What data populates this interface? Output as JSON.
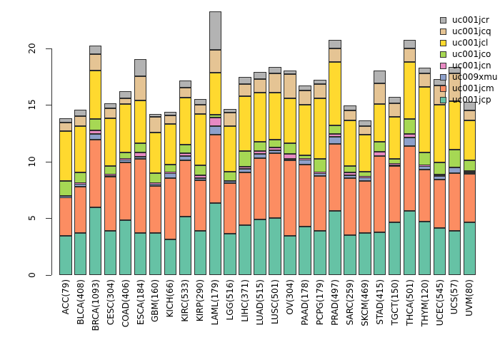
{
  "chart_data": {
    "type": "bar",
    "subtype": "stacked",
    "title": "",
    "xlabel": "",
    "ylabel": "",
    "ylim": [
      0,
      23.5
    ],
    "yticks": [
      "0",
      "5",
      "10",
      "15",
      "20"
    ],
    "ytick_values": [
      0,
      5,
      10,
      15,
      20
    ],
    "grid": false,
    "legend_position": "top-right",
    "bar_border_color": "#2f2f2f",
    "axis_color": "#333333",
    "categories": [
      "ACC(79)",
      "BLCA(408)",
      "BRCA(1093)",
      "CESC(304)",
      "COAD(406)",
      "ESCA(184)",
      "GBM(160)",
      "KICH(66)",
      "KIRC(533)",
      "KIRP(290)",
      "LAML(179)",
      "LGG(516)",
      "LIHC(371)",
      "LUAD(515)",
      "LUSC(501)",
      "OV(304)",
      "PAAD(178)",
      "PCPG(179)",
      "PRAD(497)",
      "SARC(259)",
      "SKCM(469)",
      "STAD(415)",
      "TGCT(150)",
      "THCA(501)",
      "THYM(120)",
      "UCEC(545)",
      "UCS(57)",
      "UVM(80)"
    ],
    "stack_order_note": "series listed bottom-to-top of stack",
    "series": [
      {
        "name": "uc001jcp",
        "color": "#66C2A5",
        "values": [
          3.4,
          3.65,
          5.95,
          3.85,
          4.8,
          3.65,
          3.65,
          3.1,
          5.1,
          3.85,
          6.35,
          3.6,
          4.35,
          4.9,
          5.0,
          3.4,
          4.25,
          3.9,
          5.65,
          3.5,
          3.65,
          3.75,
          4.65,
          5.6,
          4.7,
          4.1,
          3.9,
          4.6
        ]
      },
      {
        "name": "uc001jcm",
        "color": "#FC8D62",
        "values": [
          3.4,
          4.1,
          6.0,
          4.8,
          5.1,
          6.55,
          4.2,
          5.45,
          5.0,
          4.5,
          6.0,
          4.5,
          4.7,
          5.4,
          5.75,
          6.7,
          5.5,
          4.8,
          5.9,
          5.05,
          4.6,
          6.7,
          4.95,
          5.75,
          4.55,
          4.3,
          5.05,
          4.3
        ]
      },
      {
        "name": "uc009xmu",
        "color": "#8DA0CB",
        "values": [
          0.1,
          0.3,
          0.5,
          0.15,
          0.25,
          0.2,
          0.2,
          0.4,
          0.4,
          0.2,
          0.75,
          0.15,
          0.3,
          0.35,
          0.25,
          0.15,
          0.4,
          0.25,
          0.6,
          0.2,
          0.35,
          0.05,
          0.15,
          0.75,
          0.35,
          0.3,
          0.5,
          0.1
        ]
      },
      {
        "name": "uc001jcn",
        "color": "#E78AC3",
        "values": [
          0.05,
          0.05,
          0.3,
          0.05,
          0.05,
          0.4,
          0.05,
          0.05,
          0.25,
          0.2,
          0.8,
          0.05,
          0.2,
          0.25,
          0.2,
          0.4,
          0.05,
          0.05,
          0.3,
          0.28,
          0.05,
          0.35,
          0.05,
          0.3,
          0.05,
          0.15,
          0.05,
          0.15
        ]
      },
      {
        "name": "uc001jco",
        "color": "#A6D854",
        "values": [
          1.3,
          0.9,
          1.0,
          0.75,
          0.6,
          0.8,
          0.85,
          0.7,
          0.75,
          0.9,
          0.25,
          0.8,
          1.35,
          0.85,
          0.7,
          0.95,
          0.35,
          1.25,
          0.7,
          0.55,
          0.45,
          0.9,
          0.4,
          1.35,
          1.15,
          1.05,
          1.55,
          0.95
        ]
      },
      {
        "name": "uc001jcl",
        "color": "#FFD92F",
        "values": [
          4.4,
          4.1,
          4.3,
          4.2,
          4.25,
          3.8,
          3.6,
          3.6,
          4.1,
          4.55,
          3.7,
          4.0,
          4.85,
          4.35,
          4.15,
          4.0,
          4.45,
          5.35,
          5.6,
          4.05,
          3.25,
          3.3,
          3.75,
          5.05,
          5.75,
          5.1,
          4.3,
          3.55
        ]
      },
      {
        "name": "uc001jcq",
        "color": "#E5C494",
        "values": [
          0.8,
          0.9,
          1.4,
          0.9,
          0.55,
          2.1,
          1.4,
          0.75,
          0.9,
          0.8,
          2.0,
          1.2,
          1.1,
          1.15,
          1.75,
          2.1,
          1.25,
          1.2,
          1.25,
          0.9,
          0.75,
          1.85,
          1.15,
          1.2,
          1.2,
          1.7,
          2.4,
          0.85
        ]
      },
      {
        "name": "uc001jcr",
        "color": "#B3B3B3",
        "values": [
          0.35,
          0.55,
          0.75,
          0.45,
          0.6,
          1.5,
          0.25,
          0.35,
          0.65,
          0.5,
          3.4,
          0.35,
          0.6,
          0.65,
          0.55,
          0.35,
          0.45,
          0.4,
          0.75,
          0.4,
          0.5,
          1.15,
          0.6,
          0.75,
          0.5,
          0.6,
          0.6,
          0.75
        ]
      }
    ],
    "legend": [
      "uc001jcr",
      "uc001jcq",
      "uc001jcl",
      "uc001jco",
      "uc001jcn",
      "uc009xmu",
      "uc001jcm",
      "uc001jcp"
    ]
  }
}
